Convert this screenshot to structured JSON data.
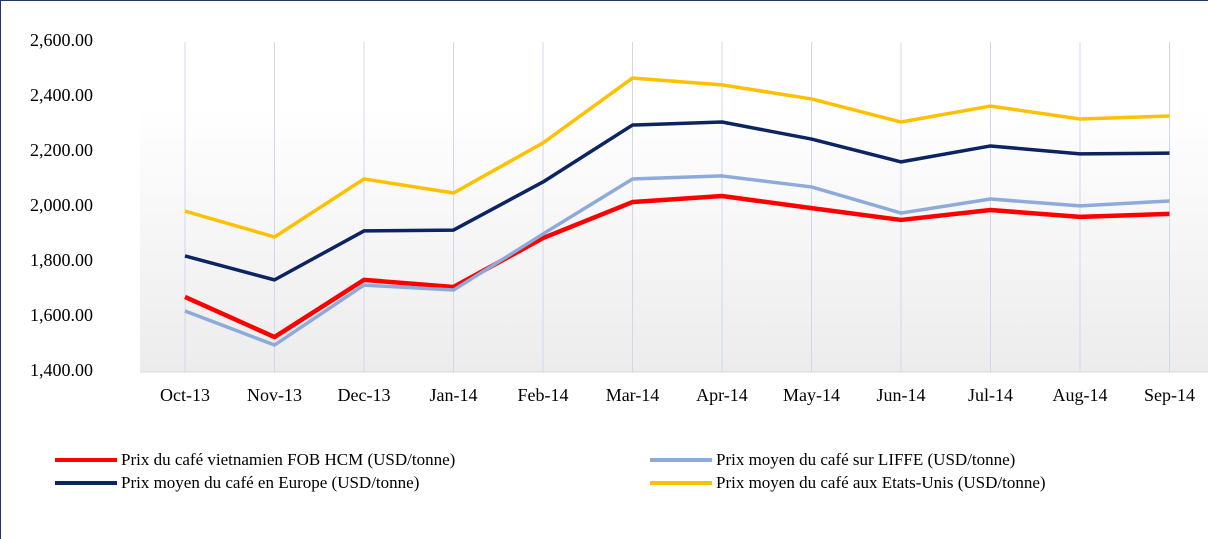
{
  "chart_data": {
    "type": "line",
    "categories": [
      "Oct-13",
      "Nov-13",
      "Dec-13",
      "Jan-14",
      "Feb-14",
      "Mar-14",
      "Apr-14",
      "May-14",
      "Jun-14",
      "Jul-14",
      "Aug-14",
      "Sep-14"
    ],
    "series": [
      {
        "name": "Prix du café vietnamien FOB HCM (USD/tonne)",
        "color": "#ff0000",
        "values": [
          1673,
          1527,
          1735,
          1709,
          1887,
          2018,
          2040,
          1996,
          1953,
          1989,
          1964,
          1975
        ]
      },
      {
        "name": "Prix moyen du café sur LIFFE (USD/tonne)",
        "color": "#8eaadb",
        "values": [
          1622,
          1498,
          1716,
          1698,
          1902,
          2102,
          2113,
          2073,
          1978,
          2029,
          2004,
          2022
        ]
      },
      {
        "name": "Prix moyen du café en Europe (USD/tonne)",
        "color": "#0d2463",
        "values": [
          1822,
          1735,
          1913,
          1916,
          2091,
          2298,
          2309,
          2247,
          2164,
          2222,
          2193,
          2196
        ]
      },
      {
        "name": "Prix moyen du café aux Etats-Unis (USD/tonne)",
        "color": "#ffc000",
        "values": [
          1985,
          1891,
          2102,
          2051,
          2233,
          2469,
          2444,
          2393,
          2309,
          2367,
          2320,
          2331
        ]
      }
    ],
    "ylim": [
      1400,
      2600
    ],
    "yticks": [
      {
        "value": 1400,
        "label": "1,400.00"
      },
      {
        "value": 1600,
        "label": "1,600.00"
      },
      {
        "value": 1800,
        "label": "1,800.00"
      },
      {
        "value": 2000,
        "label": "2,000.00"
      },
      {
        "value": 2200,
        "label": "2,200.00"
      },
      {
        "value": 2400,
        "label": "2,400.00"
      },
      {
        "value": 2600,
        "label": "2,600.00"
      }
    ],
    "grid": "x"
  }
}
